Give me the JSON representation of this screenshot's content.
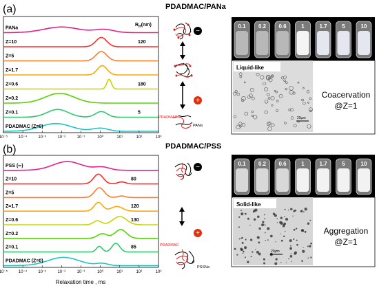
{
  "panels": [
    {
      "letter": "(a)",
      "title": "PDADMAC/PANa",
      "rh_header": "R",
      "rh_sub": "H",
      "rh_unit": "(nm)",
      "vial_labels": [
        "0.1",
        "0.2",
        "0.6",
        "1",
        "1.7",
        "5",
        "10"
      ],
      "state": "Liquid-like",
      "result_line1": "Coacervation",
      "result_line2": "@Z=1",
      "schematic_label_polycation": "PDADMAC",
      "schematic_label_polyanion": "PANa",
      "sign_top": "−",
      "sign_bottom": "+",
      "scalebar": "20µm",
      "scalebar_pos": [
        455,
        177
      ]
    },
    {
      "letter": "(b)",
      "title": "PDADMAC/PSS",
      "rh_header": "",
      "rh_sub": "",
      "rh_unit": "",
      "vial_labels": [
        "0.1",
        "0.2",
        "0.6",
        "1",
        "1.7",
        "5",
        "10"
      ],
      "state": "Solid-like",
      "result_line1": "Aggregation",
      "result_line2": "@Z=1",
      "schematic_label_polycation": "PDADMAC",
      "schematic_label_polyanion": "PSSNa",
      "sign_top": "−",
      "sign_bottom": "+",
      "scalebar": "20µm",
      "scalebar_pos": [
        395,
        372
      ]
    }
  ],
  "chart_data": [
    {
      "type": "line",
      "title": "PDADMAC/PANa",
      "xlabel": "",
      "x_scale": "log",
      "xlim": [
        1e-05,
        1000.0
      ],
      "x_tick_labels": [
        "10⁻⁵",
        "10⁻⁴",
        "10⁻³",
        "10⁻²",
        "10⁻¹",
        "10⁰",
        "10¹",
        "10²",
        "10³"
      ],
      "series": [
        {
          "name": "PANa",
          "color": "#e0208a",
          "rh": "",
          "peaks": [
            [
              -2.0,
              0.55,
              0.9
            ],
            [
              0.2,
              0.3,
              0.5
            ]
          ]
        },
        {
          "name": "Z=10",
          "color": "#ff2b2b",
          "rh": "120",
          "peaks": [
            [
              0.05,
              0.9,
              0.28
            ]
          ]
        },
        {
          "name": "Z=5",
          "color": "#ff7a2a",
          "rh": "",
          "peaks": [
            [
              0.05,
              0.9,
              0.28
            ]
          ]
        },
        {
          "name": "Z=1.7",
          "color": "#ffa600",
          "rh": "",
          "peaks": [
            [
              0.1,
              0.9,
              0.25
            ]
          ]
        },
        {
          "name": "Z=0.6",
          "color": "#c8d400",
          "rh": "180",
          "peaks": [
            [
              0.45,
              0.95,
              0.12
            ]
          ]
        },
        {
          "name": "Z=0.2",
          "color": "#55d400",
          "rh": "",
          "peaks": [
            [
              -2.1,
              0.95,
              0.75
            ]
          ]
        },
        {
          "name": "Z=0.1",
          "color": "#2ec76e",
          "rh": "5",
          "peaks": [
            [
              -2.2,
              0.75,
              0.55
            ],
            [
              0.05,
              0.55,
              0.3
            ]
          ]
        },
        {
          "name": "PDADMAC (Z=0)",
          "color": "#1fc4c4",
          "rh": "",
          "peaks": [
            [
              -2.3,
              0.75,
              0.8
            ],
            [
              0.0,
              0.3,
              0.4
            ]
          ]
        }
      ]
    },
    {
      "type": "line",
      "title": "PDADMAC/PSS",
      "xlabel": "Relaxation time , ms",
      "x_scale": "log",
      "xlim": [
        1e-05,
        1000.0
      ],
      "x_tick_labels": [
        "10⁻⁵",
        "10⁻⁴",
        "10⁻³",
        "10⁻²",
        "10⁻¹",
        "10⁰",
        "10¹",
        "10²",
        "10³"
      ],
      "series": [
        {
          "name": "PSS (∞)",
          "color": "#e0208a",
          "rh": "",
          "peaks": [
            [
              -1.7,
              0.85,
              0.75
            ],
            [
              0.1,
              0.3,
              0.4
            ]
          ]
        },
        {
          "name": "Z=10",
          "color": "#ff2b2b",
          "rh": "80",
          "peaks": [
            [
              -0.1,
              0.95,
              0.25
            ],
            [
              1.1,
              0.2,
              0.2
            ]
          ]
        },
        {
          "name": "Z=5",
          "color": "#ff7a2a",
          "rh": "",
          "peaks": [
            [
              -0.05,
              0.95,
              0.25
            ],
            [
              1.1,
              0.15,
              0.2
            ]
          ]
        },
        {
          "name": "Z=1.7",
          "color": "#ffa600",
          "rh": "120",
          "peaks": [
            [
              -0.1,
              0.85,
              0.22
            ],
            [
              0.85,
              0.45,
              0.3
            ]
          ]
        },
        {
          "name": "Z=0.6",
          "color": "#c8d400",
          "rh": "130",
          "peaks": [
            [
              -0.15,
              0.4,
              0.2
            ],
            [
              1.0,
              0.8,
              0.35
            ]
          ]
        },
        {
          "name": "Z=0.2",
          "color": "#55d400",
          "rh": "",
          "peaks": [
            [
              0.1,
              0.45,
              0.25
            ],
            [
              1.05,
              0.85,
              0.3
            ]
          ]
        },
        {
          "name": "Z=0.1",
          "color": "#2ec76e",
          "rh": "85",
          "peaks": [
            [
              -0.05,
              0.55,
              0.15
            ],
            [
              0.8,
              0.85,
              0.2
            ]
          ]
        },
        {
          "name": "PDADMAC (Z=0)",
          "color": "#1fc4c4",
          "rh": "",
          "peaks": [
            [
              -1.9,
              0.8,
              0.8
            ],
            [
              0.1,
              0.2,
              0.3
            ]
          ]
        }
      ]
    }
  ]
}
